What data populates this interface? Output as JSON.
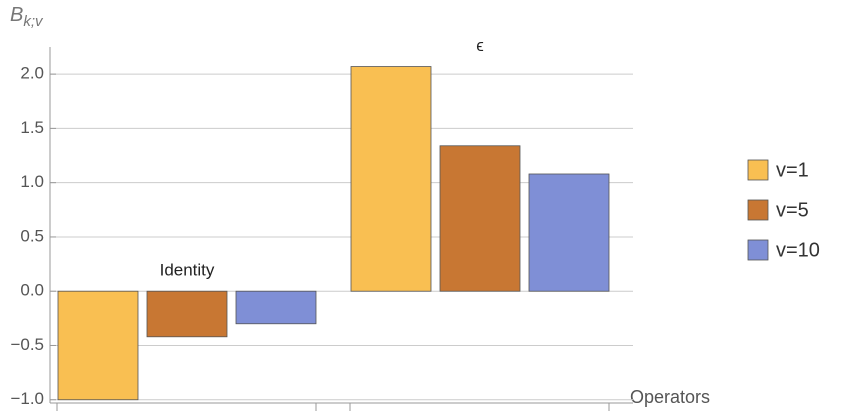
{
  "chart_data": {
    "type": "bar",
    "ylabel": "B",
    "ylabel_sub": "k;v",
    "xlabel": "Operators",
    "categories": [
      "Identity",
      "ϵ"
    ],
    "series": [
      {
        "name": "v=1",
        "color": "#f9bf52",
        "values": [
          -1.0,
          2.07
        ]
      },
      {
        "name": "v=5",
        "color": "#c87733",
        "values": [
          -0.42,
          1.34
        ]
      },
      {
        "name": "v=10",
        "color": "#7f8fd6",
        "values": [
          -0.3,
          1.08
        ]
      }
    ],
    "ylim": [
      -1.03,
      2.25
    ],
    "yticks": [
      {
        "value": -1.0,
        "label": "−1.0"
      },
      {
        "value": -0.5,
        "label": "−0.5"
      },
      {
        "value": 0,
        "label": "0.0"
      },
      {
        "value": 0.5,
        "label": "0.5"
      },
      {
        "value": 1.0,
        "label": "1.0"
      },
      {
        "value": 1.5,
        "label": "1.5"
      },
      {
        "value": 2.0,
        "label": "2.0"
      }
    ],
    "grid": true
  }
}
